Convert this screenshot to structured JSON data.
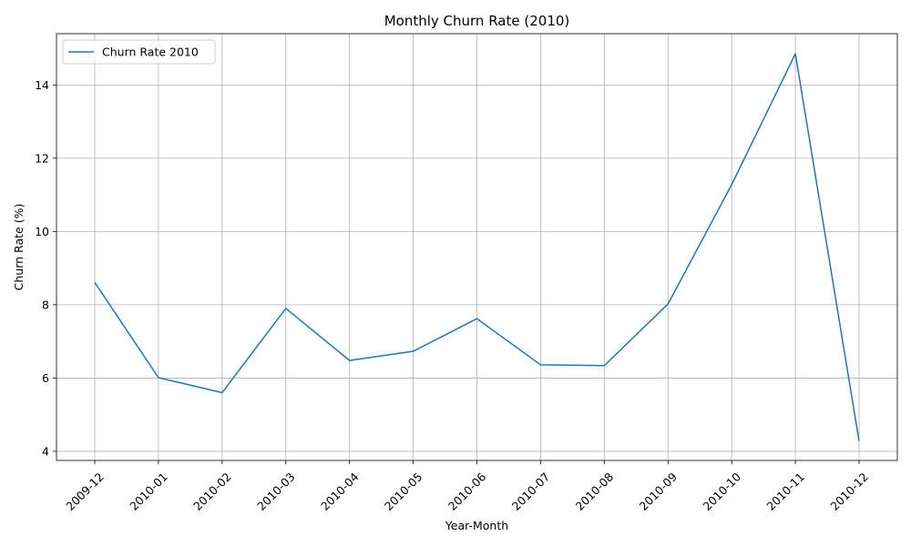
{
  "chart_data": {
    "type": "line",
    "title": "Monthly Churn Rate (2010)",
    "xlabel": "Year-Month",
    "ylabel": "Churn Rate (%)",
    "categories": [
      "2009-12",
      "2010-01",
      "2010-02",
      "2010-03",
      "2010-04",
      "2010-05",
      "2010-06",
      "2010-07",
      "2010-08",
      "2010-09",
      "2010-10",
      "2010-11",
      "2010-12"
    ],
    "series": [
      {
        "name": "Churn Rate 2010",
        "color": "#1f77b4",
        "values": [
          8.61,
          6.01,
          5.6,
          7.9,
          6.48,
          6.73,
          7.62,
          6.36,
          6.34,
          8.02,
          11.28,
          14.85,
          4.28
        ]
      }
    ],
    "yticks": [
      4,
      6,
      8,
      10,
      12,
      14
    ],
    "ylim": [
      3.75,
      15.4
    ],
    "grid": true,
    "legend_position": "top-left"
  }
}
